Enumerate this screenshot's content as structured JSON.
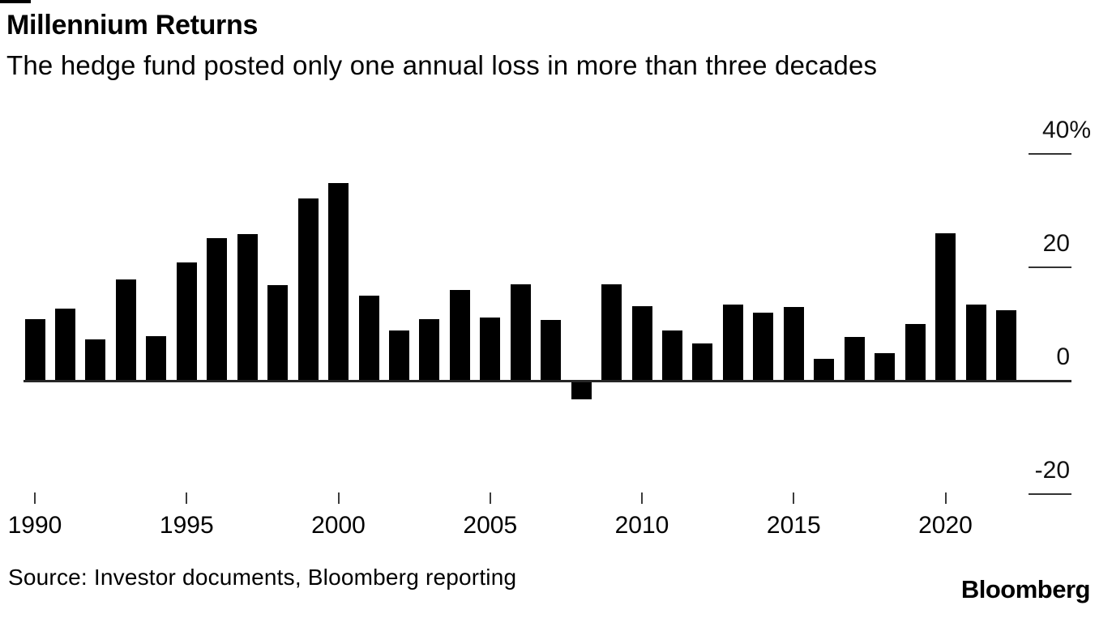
{
  "header": {
    "title": "Millennium Returns",
    "subtitle": "The hedge fund posted only one annual loss in more than three decades"
  },
  "chart_data": {
    "type": "bar",
    "title": "Millennium Returns",
    "subtitle": "The hedge fund posted only one annual loss in more than three decades",
    "unit": "percent",
    "categories": [
      1990,
      1991,
      1992,
      1993,
      1994,
      1995,
      1996,
      1997,
      1998,
      1999,
      2000,
      2001,
      2002,
      2003,
      2004,
      2005,
      2006,
      2007,
      2008,
      2009,
      2010,
      2011,
      2012,
      2013,
      2014,
      2015,
      2016,
      2017,
      2018,
      2019,
      2020,
      2021,
      2022
    ],
    "values": [
      10.8,
      12.7,
      7.3,
      17.8,
      7.9,
      20.8,
      25.2,
      25.9,
      16.9,
      32.2,
      34.9,
      15.0,
      8.8,
      10.9,
      16.0,
      11.1,
      17.0,
      10.7,
      -3.3,
      17.0,
      13.2,
      8.8,
      6.6,
      13.5,
      12.0,
      13.0,
      3.9,
      7.7,
      4.8,
      10.0,
      26.0,
      13.5,
      12.4
    ],
    "bar_color": "#000000",
    "background": "#ffffff",
    "grid": false,
    "legend": false,
    "y_axis": {
      "side": "right",
      "range": [
        -27,
        43
      ],
      "ticks": [
        {
          "label": "40%",
          "value": 40
        },
        {
          "label": "20",
          "value": 20
        },
        {
          "label": "0",
          "value": 0
        },
        {
          "label": "-20",
          "value": -20
        }
      ]
    },
    "x_axis": {
      "ticks": [
        1990,
        1995,
        2000,
        2005,
        2010,
        2015,
        2020
      ]
    }
  },
  "footer": {
    "source": "Source: Investor documents, Bloomberg reporting",
    "logo": "Bloomberg"
  }
}
